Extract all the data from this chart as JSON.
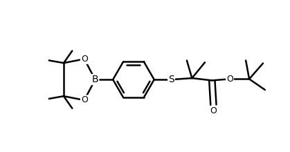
{
  "bg_color": "#ffffff",
  "line_color": "#000000",
  "line_width": 1.8,
  "font_size": 9.0,
  "fig_width": 4.19,
  "fig_height": 2.2,
  "dpi": 100,
  "xlim": [
    0,
    10
  ],
  "ylim": [
    0,
    5.25
  ]
}
